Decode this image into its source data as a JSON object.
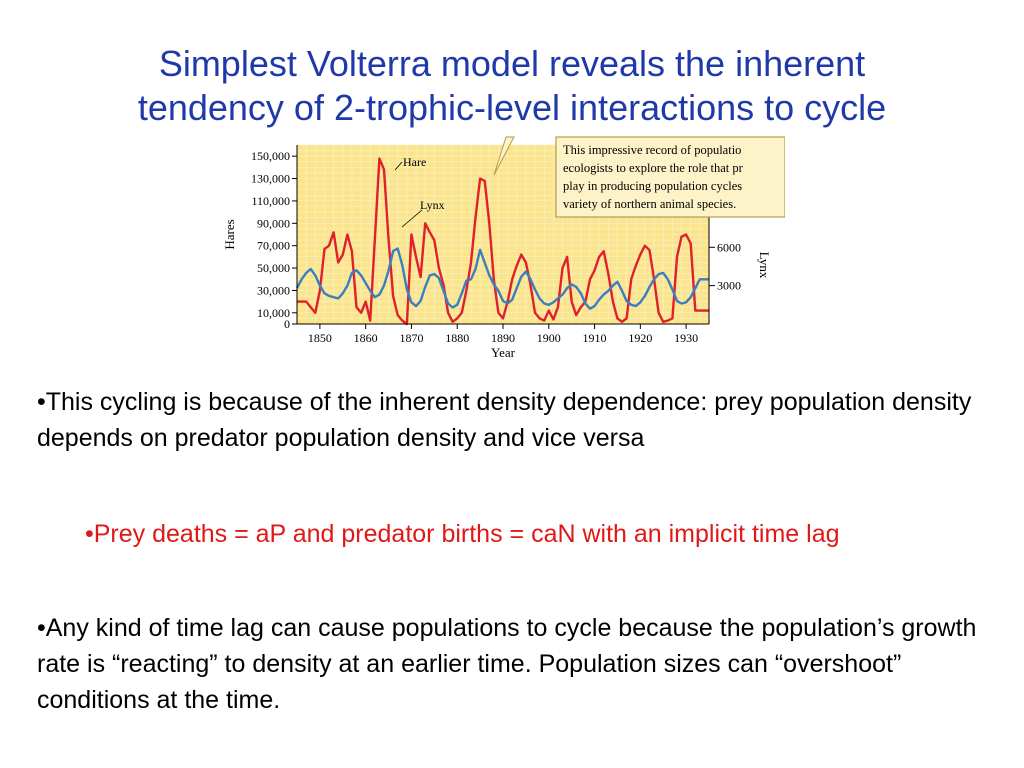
{
  "slide": {
    "title_line1": "Simplest Volterra model reveals the inherent",
    "title_line2": "tendency of 2-trophic-level interactions to cycle",
    "bullet1": "•This cycling is because of the inherent density dependence:  prey population density depends on predator population density and vice versa",
    "bullet2": "•Prey deaths = aP and predator births = caN with an implicit time lag",
    "bullet3": "•Any kind of time lag can cause populations to cycle because the population’s growth rate is “reacting” to density at an earlier time.  Population sizes can “overshoot” conditions at the time."
  },
  "colors": {
    "title": "#1f3aa8",
    "bullet_sub": "#e01818",
    "plot_bg": "#fbe48a",
    "grid": "#f6f0c8",
    "hare": "#e0202c",
    "lynx": "#3a7fc0",
    "callout_bg": "#fdf3c9",
    "callout_border": "#b89a4a"
  },
  "chart_data": {
    "type": "line",
    "xlabel": "Year",
    "ylabel_left": "Hares",
    "ylabel_right": "Lynx",
    "xlim": [
      1845,
      1935
    ],
    "xticks": [
      1850,
      1860,
      1870,
      1880,
      1890,
      1900,
      1910,
      1920,
      1930
    ],
    "ylim_left": [
      0,
      160000
    ],
    "yticks_left": [
      "0",
      "10,000",
      "30,000",
      "50,000",
      "70,000",
      "90,000",
      "110,000",
      "130,000",
      "150,000"
    ],
    "yticks_right": [
      "3000",
      "6000"
    ],
    "grid": true,
    "callout": [
      "This impressive record of populatio",
      "ecologists to explore the role that pr",
      "play in producing population cycles",
      "variety of northern animal species."
    ],
    "series": [
      {
        "name": "Hare",
        "x": [
          1845,
          1846,
          1847,
          1848,
          1849,
          1850,
          1851,
          1852,
          1853,
          1854,
          1855,
          1856,
          1857,
          1858,
          1859,
          1860,
          1861,
          1862,
          1863,
          1864,
          1865,
          1866,
          1867,
          1868,
          1869,
          1870,
          1871,
          1872,
          1873,
          1874,
          1875,
          1876,
          1877,
          1878,
          1879,
          1880,
          1881,
          1882,
          1883,
          1884,
          1885,
          1886,
          1887,
          1888,
          1889,
          1890,
          1891,
          1892,
          1893,
          1894,
          1895,
          1896,
          1897,
          1898,
          1899,
          1900,
          1901,
          1902,
          1903,
          1904,
          1905,
          1906,
          1907,
          1908,
          1909,
          1910,
          1911,
          1912,
          1913,
          1914,
          1915,
          1916,
          1917,
          1918,
          1919,
          1920,
          1921,
          1922,
          1923,
          1924,
          1925,
          1926,
          1927,
          1928,
          1929,
          1930,
          1931,
          1932,
          1933,
          1934,
          1935
        ],
        "values": [
          20000,
          20000,
          20000,
          15000,
          10000,
          30000,
          67000,
          70000,
          82000,
          55000,
          62000,
          80000,
          65000,
          15000,
          10000,
          20000,
          3000,
          75000,
          148000,
          138000,
          75000,
          25000,
          8000,
          3000,
          0,
          80000,
          60000,
          42000,
          90000,
          82000,
          75000,
          50000,
          35000,
          10000,
          2000,
          5000,
          10000,
          30000,
          55000,
          95000,
          130000,
          128000,
          90000,
          40000,
          10000,
          5000,
          20000,
          40000,
          52000,
          62000,
          55000,
          35000,
          10000,
          5000,
          3000,
          12000,
          4000,
          15000,
          50000,
          60000,
          20000,
          8000,
          15000,
          20000,
          40000,
          48000,
          60000,
          65000,
          45000,
          20000,
          5000,
          2000,
          5000,
          40000,
          52000,
          62000,
          70000,
          66000,
          40000,
          10000,
          2000,
          3000,
          5000,
          60000,
          78000,
          80000,
          72000,
          12000,
          12000,
          12000,
          12000
        ]
      },
      {
        "name": "Lynx",
        "x": [
          1845,
          1846,
          1847,
          1848,
          1849,
          1850,
          1851,
          1852,
          1853,
          1854,
          1855,
          1856,
          1857,
          1858,
          1859,
          1860,
          1861,
          1862,
          1863,
          1864,
          1865,
          1866,
          1867,
          1868,
          1869,
          1870,
          1871,
          1872,
          1873,
          1874,
          1875,
          1876,
          1877,
          1878,
          1879,
          1880,
          1881,
          1882,
          1883,
          1884,
          1885,
          1886,
          1887,
          1888,
          1889,
          1890,
          1891,
          1892,
          1893,
          1894,
          1895,
          1896,
          1897,
          1898,
          1899,
          1900,
          1901,
          1902,
          1903,
          1904,
          1905,
          1906,
          1907,
          1908,
          1909,
          1910,
          1911,
          1912,
          1913,
          1914,
          1915,
          1916,
          1917,
          1918,
          1919,
          1920,
          1921,
          1922,
          1923,
          1924,
          1925,
          1926,
          1927,
          1928,
          1929,
          1930,
          1931,
          1932,
          1933,
          1934,
          1935
        ],
        "values": [
          2800,
          3500,
          4000,
          4300,
          3800,
          3000,
          2400,
          2200,
          2100,
          2000,
          2400,
          3000,
          4000,
          4200,
          3800,
          3200,
          2600,
          2100,
          2300,
          3000,
          4200,
          5700,
          5900,
          4600,
          2700,
          1700,
          1400,
          1800,
          2900,
          3800,
          3900,
          3600,
          2600,
          1600,
          1300,
          1500,
          2400,
          3400,
          3500,
          4300,
          5800,
          4800,
          3800,
          3100,
          2600,
          1800,
          1600,
          1900,
          2800,
          3700,
          4100,
          3500,
          2700,
          2000,
          1600,
          1500,
          1700,
          2000,
          2300,
          2800,
          3100,
          2900,
          2400,
          1600,
          1200,
          1400,
          1900,
          2300,
          2600,
          3000,
          3300,
          2600,
          1800,
          1500,
          1400,
          1700,
          2200,
          2900,
          3500,
          3900,
          4000,
          3500,
          2700,
          1800,
          1600,
          1700,
          2100,
          2800,
          3500,
          3500,
          3500
        ]
      }
    ]
  }
}
